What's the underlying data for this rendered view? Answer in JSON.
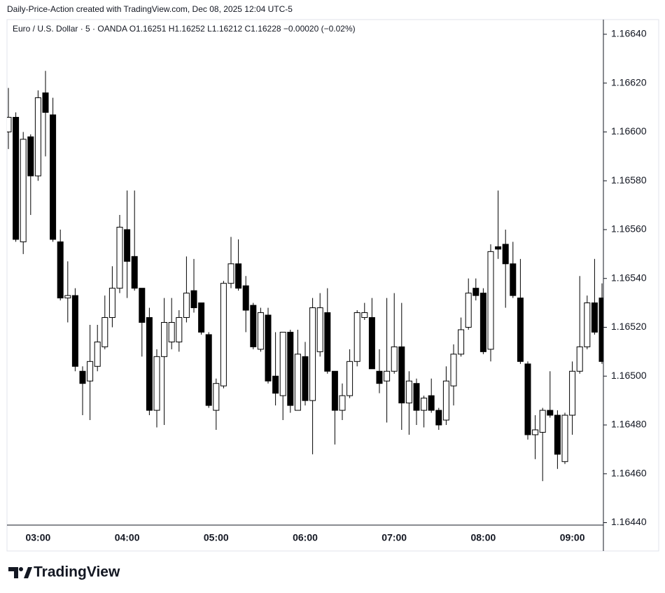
{
  "chart_data": {
    "type": "candlestick",
    "attribution": "Daily-Price-Action created with TradingView.com, Dec 08, 2025 12:04 UTC-5",
    "subtitle": "Euro / U.S. Dollar · 5 · OANDA  O1.16251  H1.16252  L1.16212  C1.16228  −0.00020 (−0.02%)",
    "brand": "TradingView",
    "up_color": "#ffffff",
    "down_color": "#000000",
    "categories": [
      null,
      null,
      null,
      null,
      "03:00",
      null,
      null,
      null,
      null,
      null,
      null,
      null,
      null,
      null,
      null,
      null,
      "04:00",
      null,
      null,
      null,
      null,
      null,
      null,
      null,
      null,
      null,
      null,
      null,
      "05:00",
      null,
      null,
      null,
      null,
      null,
      null,
      null,
      null,
      null,
      null,
      null,
      "06:00",
      null,
      null,
      null,
      null,
      null,
      null,
      null,
      null,
      null,
      null,
      null,
      "07:00",
      null,
      null,
      null,
      null,
      null,
      null,
      null,
      null,
      null,
      null,
      null,
      "08:00",
      null,
      null,
      null,
      null,
      null,
      null,
      null,
      null,
      null,
      null,
      null,
      "09:00",
      null,
      null,
      null,
      null
    ],
    "open": [
      1.166,
      1.16606,
      1.16555,
      1.16598,
      1.16582,
      1.16616,
      1.16607,
      1.16555,
      1.16532,
      1.16533,
      1.16502,
      1.16498,
      1.16504,
      1.16512,
      1.16524,
      1.16536,
      1.1656,
      1.16549,
      1.16536,
      1.16524,
      1.16486,
      1.16508,
      1.16514,
      1.16514,
      1.16524,
      1.16535,
      1.1653,
      1.16517,
      1.16486,
      1.16496,
      1.16538,
      1.16546,
      1.16537,
      1.16529,
      1.16511,
      1.16525,
      1.165,
      1.16492,
      1.16518,
      1.16486,
      1.16508,
      1.1649,
      1.1651,
      1.16526,
      1.16502,
      1.16486,
      1.16492,
      1.16506,
      1.16524,
      1.16524,
      1.16502,
      1.16498,
      1.16502,
      1.16512,
      1.16489,
      1.16497,
      1.16486,
      1.16492,
      1.16486,
      1.16482,
      1.16496,
      1.16509,
      1.1652,
      1.16536,
      1.16534,
      1.16511,
      1.16553,
      1.16554,
      1.16546,
      1.16532,
      1.16505,
      1.16476,
      1.16477,
      1.16486,
      1.16484,
      1.16465,
      1.16484,
      1.16502,
      1.16512,
      1.1653,
      1.16532
    ],
    "high": [
      1.16618,
      1.16608,
      1.166,
      1.16599,
      1.16617,
      1.16625,
      1.16614,
      1.1656,
      1.16547,
      1.16536,
      1.16504,
      1.16521,
      1.16521,
      1.16533,
      1.16545,
      1.16566,
      1.16576,
      1.16576,
      1.16536,
      1.16528,
      1.16511,
      1.16532,
      1.16532,
      1.16527,
      1.16549,
      1.16548,
      1.1653,
      1.16518,
      1.16499,
      1.16539,
      1.16557,
      1.16556,
      1.16541,
      1.1653,
      1.16528,
      1.16528,
      1.16518,
      1.16518,
      1.16519,
      1.16519,
      1.16514,
      1.16532,
      1.16534,
      1.16536,
      1.16502,
      1.16497,
      1.16511,
      1.16527,
      1.1653,
      1.16532,
      1.16511,
      1.16532,
      1.16534,
      1.1653,
      1.16502,
      1.16499,
      1.16492,
      1.16499,
      1.16487,
      1.16504,
      1.16513,
      1.16524,
      1.1654,
      1.1654,
      1.16536,
      1.16554,
      1.16576,
      1.1656,
      1.16555,
      1.16548,
      1.16506,
      1.16484,
      1.16487,
      1.16502,
      1.16486,
      1.16485,
      1.16506,
      1.16541,
      1.16533,
      1.16548,
      1.16538
    ],
    "low": [
      1.16593,
      1.16555,
      1.1655,
      1.16566,
      1.1658,
      1.1659,
      1.16555,
      1.16531,
      1.16522,
      1.16502,
      1.16484,
      1.16482,
      1.16502,
      1.16511,
      1.1652,
      1.16534,
      1.16532,
      1.16535,
      1.16508,
      1.16484,
      1.16479,
      1.1648,
      1.16511,
      1.1651,
      1.16522,
      1.16526,
      1.16517,
      1.16487,
      1.16478,
      1.16495,
      1.16536,
      1.16535,
      1.16518,
      1.16511,
      1.1651,
      1.16497,
      1.16488,
      1.16482,
      1.16485,
      1.16486,
      1.16488,
      1.16468,
      1.16508,
      1.16501,
      1.16472,
      1.16482,
      1.16491,
      1.16504,
      1.16523,
      1.16503,
      1.16493,
      1.16481,
      1.16501,
      1.16478,
      1.16476,
      1.1648,
      1.16479,
      1.16485,
      1.16478,
      1.1648,
      1.16488,
      1.16508,
      1.16519,
      1.16531,
      1.16509,
      1.16506,
      1.16548,
      1.16528,
      1.16532,
      1.16505,
      1.16474,
      1.16466,
      1.16457,
      1.16483,
      1.16462,
      1.16464,
      1.16476,
      1.16501,
      1.16511,
      1.16517,
      1.16505
    ],
    "close": [
      1.16606,
      1.16556,
      1.16597,
      1.16582,
      1.16614,
      1.16608,
      1.16556,
      1.16532,
      1.16533,
      1.16504,
      1.16497,
      1.16506,
      1.16514,
      1.16524,
      1.16536,
      1.16561,
      1.16547,
      1.16536,
      1.16522,
      1.16486,
      1.16508,
      1.16522,
      1.16522,
      1.16524,
      1.16534,
      1.16528,
      1.16518,
      1.16488,
      1.16497,
      1.16538,
      1.16546,
      1.16536,
      1.16527,
      1.16512,
      1.16526,
      1.16498,
      1.16493,
      1.16518,
      1.16488,
      1.16509,
      1.1649,
      1.16528,
      1.16528,
      1.16502,
      1.16486,
      1.16492,
      1.16506,
      1.16526,
      1.16526,
      1.16503,
      1.16497,
      1.16502,
      1.16512,
      1.16489,
      1.16498,
      1.16486,
      1.16491,
      1.16486,
      1.1648,
      1.16498,
      1.16509,
      1.16519,
      1.16534,
      1.16533,
      1.1651,
      1.16551,
      1.16552,
      1.16546,
      1.16533,
      1.16506,
      1.16476,
      1.16478,
      1.16486,
      1.16484,
      1.16468,
      1.16484,
      1.16502,
      1.16512,
      1.1653,
      1.16518,
      1.16506
    ],
    "ylim": [
      1.16439,
      1.16646
    ],
    "yticks": [
      {
        "value": 1.1644,
        "label": "1.16440"
      },
      {
        "value": 1.1646,
        "label": "1.16460"
      },
      {
        "value": 1.1648,
        "label": "1.16480"
      },
      {
        "value": 1.165,
        "label": "1.16500"
      },
      {
        "value": 1.1652,
        "label": "1.16520"
      },
      {
        "value": 1.1654,
        "label": "1.16540"
      },
      {
        "value": 1.1656,
        "label": "1.16560"
      },
      {
        "value": 1.1658,
        "label": "1.16580"
      },
      {
        "value": 1.166,
        "label": "1.16600"
      },
      {
        "value": 1.1662,
        "label": "1.16620"
      },
      {
        "value": 1.1664,
        "label": "1.16640"
      }
    ],
    "grid": false
  }
}
